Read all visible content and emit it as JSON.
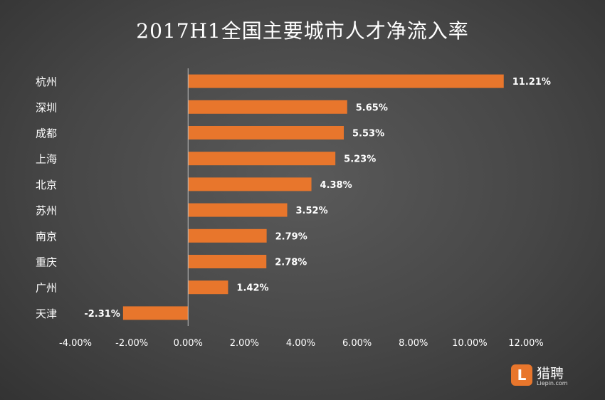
{
  "colors": {
    "bar": "#e8762c",
    "text": "#ffffff",
    "axis_line": "#bdbdbd"
  },
  "logo": {
    "mark": "L",
    "name": "猎聘",
    "sub": "Liepin.com"
  },
  "chart_data": {
    "type": "bar",
    "orientation": "horizontal",
    "title": "2017H1全国主要城市人才净流入率",
    "categories": [
      "杭州",
      "深圳",
      "成都",
      "上海",
      "北京",
      "苏州",
      "南京",
      "重庆",
      "广州",
      "天津"
    ],
    "values": [
      11.21,
      5.65,
      5.53,
      5.23,
      4.38,
      3.52,
      2.79,
      2.78,
      1.42,
      -2.31
    ],
    "value_labels": [
      "11.21%",
      "5.65%",
      "5.53%",
      "5.23%",
      "4.38%",
      "3.52%",
      "2.79%",
      "2.78%",
      "1.42%",
      "-2.31%"
    ],
    "x_ticks": [
      -4,
      -2,
      0,
      2,
      4,
      6,
      8,
      10,
      12
    ],
    "x_tick_labels": [
      "-4.00%",
      "-2.00%",
      "0.00%",
      "2.00%",
      "4.00%",
      "6.00%",
      "8.00%",
      "10.00%",
      "12.00%"
    ],
    "xlim": [
      -4,
      12
    ],
    "grid": false,
    "legend": "none"
  }
}
